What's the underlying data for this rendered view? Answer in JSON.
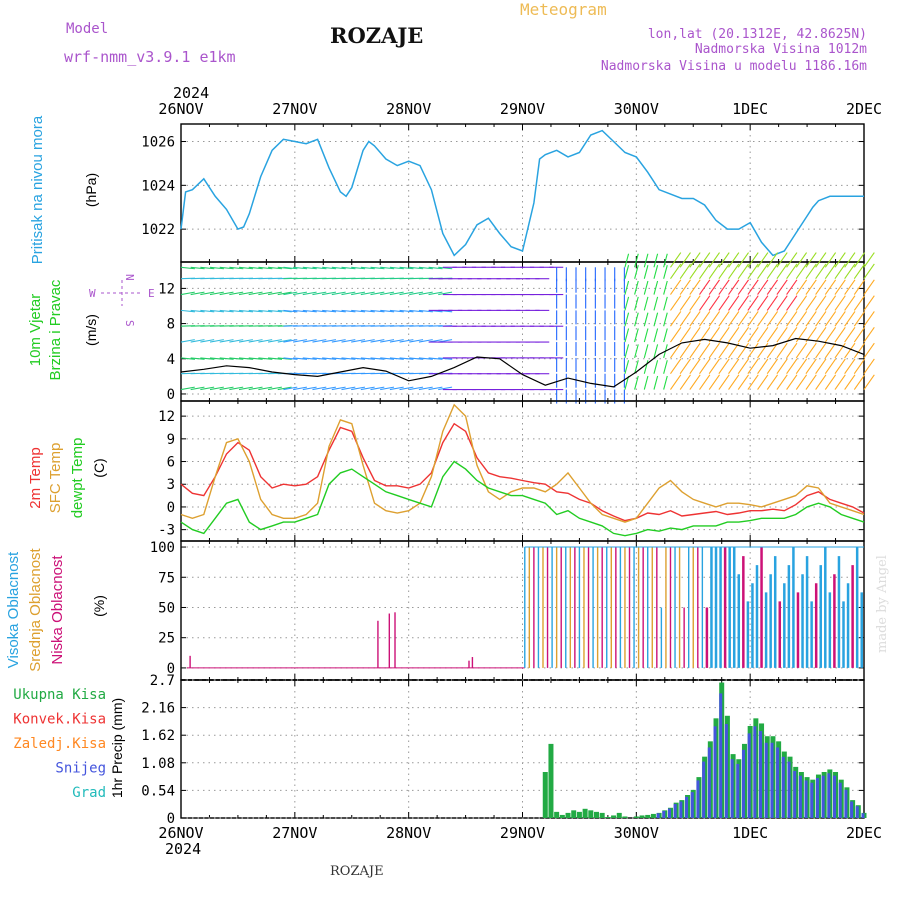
{
  "header": {
    "model_label": "Model",
    "model_name": "wrf-nmm_v3.9.1 e1km",
    "title": "ROZAJE",
    "subtitle": "Meteogram",
    "coords": "lon,lat (20.1312E, 42.8625N)",
    "elevation": "Nadmorska Visina 1012m",
    "model_elevation": "Nadmorska Visina u modelu 1186.16m",
    "footer": "ROZAJE",
    "credit": "made by Angel"
  },
  "colors": {
    "pressure": "#29a3e0",
    "temp2m": "#ee3333",
    "sfc": "#dda030",
    "dewpt": "#22cc22",
    "high_cloud": "#29a3e0",
    "mid_cloud": "#dda030",
    "low_cloud": "#cc1177",
    "precip_total": "#22aa44",
    "precip_snow": "#4455dd",
    "model_label": "#aa55cc"
  },
  "chart_data": [
    {
      "id": "time_axis",
      "type": "line",
      "year": "2024",
      "categories": [
        "26NOV",
        "27NOV",
        "28NOV",
        "29NOV",
        "30NOV",
        "1DEC",
        "2DEC"
      ]
    },
    {
      "id": "pressure",
      "type": "line",
      "ylabel": "Pritisak na nivou mora",
      "unit": "(hPa)",
      "yticks": [
        1022,
        1024,
        1026
      ],
      "ylim": [
        1020.5,
        1026.8
      ],
      "series": [
        {
          "x": [
            0,
            0.04,
            0.1,
            0.2,
            0.3,
            0.4,
            0.5,
            0.55,
            0.6,
            0.7,
            0.8,
            0.9,
            1.0,
            1.1,
            1.2,
            1.3,
            1.4,
            1.45,
            1.5,
            1.6,
            1.65,
            1.7,
            1.8,
            1.9,
            2.0,
            2.1,
            2.2,
            2.3,
            2.4,
            2.5,
            2.6,
            2.7,
            2.8,
            2.9,
            3.0,
            3.1,
            3.15,
            3.2,
            3.3,
            3.4,
            3.5,
            3.6,
            3.7,
            3.8,
            3.9,
            4.0,
            4.1,
            4.2,
            4.3,
            4.4,
            4.5,
            4.6,
            4.7,
            4.8,
            4.9,
            5.0,
            5.1,
            5.2,
            5.3,
            5.4,
            5.5,
            5.55,
            5.6,
            5.7,
            5.8,
            5.9,
            6.0
          ],
          "y": [
            1022.0,
            1023.7,
            1023.8,
            1024.3,
            1023.5,
            1022.9,
            1022.0,
            1022.1,
            1022.7,
            1024.4,
            1025.6,
            1026.1,
            1026.0,
            1025.9,
            1026.1,
            1024.8,
            1023.7,
            1023.5,
            1023.9,
            1025.6,
            1026.0,
            1025.8,
            1025.2,
            1024.9,
            1025.1,
            1024.9,
            1023.8,
            1021.8,
            1020.8,
            1021.3,
            1022.2,
            1022.5,
            1021.8,
            1021.2,
            1021.0,
            1023.2,
            1025.2,
            1025.4,
            1025.6,
            1025.3,
            1025.5,
            1026.3,
            1026.5,
            1026.0,
            1025.5,
            1025.3,
            1024.6,
            1023.8,
            1023.6,
            1023.4,
            1023.4,
            1023.1,
            1022.4,
            1022.0,
            1022.0,
            1022.3,
            1021.4,
            1020.8,
            1021.0,
            1021.8,
            1022.6,
            1023.0,
            1023.3,
            1023.5,
            1023.5,
            1023.5,
            1023.5
          ]
        }
      ]
    },
    {
      "id": "wind",
      "type": "line",
      "ylabel": "10m Vjetar",
      "ylabel2": "Brzina i Pravac",
      "unit": "(m/s)",
      "yticks": [
        0,
        4,
        8,
        12
      ],
      "ylim": [
        -0.8,
        15
      ],
      "legend": {
        "n": "N",
        "w": "W",
        "e": "E",
        "s": "S"
      },
      "series": [
        {
          "name": "speed",
          "x": [
            0,
            0.2,
            0.4,
            0.6,
            0.8,
            1.0,
            1.2,
            1.4,
            1.6,
            1.8,
            2.0,
            2.2,
            2.4,
            2.6,
            2.8,
            3.0,
            3.2,
            3.4,
            3.6,
            3.8,
            4.0,
            4.2,
            4.4,
            4.6,
            4.8,
            5.0,
            5.2,
            5.4,
            5.6,
            5.8,
            6.0
          ],
          "y": [
            2.5,
            2.8,
            3.2,
            3.0,
            2.5,
            2.2,
            2.0,
            2.5,
            3.0,
            2.6,
            1.5,
            2.0,
            3.0,
            4.2,
            4.0,
            2.2,
            1.0,
            1.8,
            1.2,
            0.8,
            2.5,
            4.5,
            5.8,
            6.2,
            5.8,
            5.2,
            5.5,
            6.3,
            6.0,
            5.5,
            4.5
          ]
        }
      ],
      "direction_bands": [
        {
          "x": [
            0.0,
            0.9
          ],
          "color": "#22cc66"
        },
        {
          "x": [
            0.9,
            2.3
          ],
          "color": "#3399ff"
        },
        {
          "x": [
            2.3,
            3.3
          ],
          "color": "#7722dd"
        },
        {
          "x": [
            3.3,
            3.9
          ],
          "color": "#2266ff"
        },
        {
          "x": [
            3.9,
            4.3
          ],
          "color": "#22dd44"
        },
        {
          "x": [
            4.3,
            6.0
          ],
          "color": "#ffaa22"
        }
      ]
    },
    {
      "id": "temperature",
      "type": "line",
      "ylabel": "2m Temp",
      "ylabel2": "SFC Temp",
      "ylabel3": "dewpt Temp",
      "unit": "(C)",
      "yticks": [
        -3,
        0,
        3,
        6,
        9,
        12
      ],
      "ylim": [
        -4.5,
        14
      ],
      "categories": [
        "26NOV",
        "27NOV",
        "28NOV",
        "29NOV",
        "30NOV",
        "1DEC",
        "2DEC"
      ],
      "series": [
        {
          "name": "2m Temp",
          "x": [
            0,
            0.1,
            0.2,
            0.3,
            0.4,
            0.5,
            0.6,
            0.7,
            0.8,
            0.9,
            1.0,
            1.1,
            1.2,
            1.3,
            1.4,
            1.5,
            1.6,
            1.7,
            1.8,
            1.9,
            2.0,
            2.1,
            2.2,
            2.3,
            2.4,
            2.5,
            2.6,
            2.7,
            2.8,
            2.9,
            3.0,
            3.1,
            3.2,
            3.3,
            3.4,
            3.5,
            3.6,
            3.7,
            3.8,
            3.9,
            4.0,
            4.1,
            4.2,
            4.3,
            4.4,
            4.5,
            4.6,
            4.7,
            4.8,
            4.9,
            5.0,
            5.1,
            5.2,
            5.3,
            5.4,
            5.5,
            5.6,
            5.7,
            5.8,
            5.9,
            6.0
          ],
          "y": [
            3.0,
            1.8,
            1.5,
            4.0,
            7.0,
            8.5,
            7.5,
            4.0,
            2.5,
            3.0,
            2.8,
            3.0,
            4.0,
            7.5,
            10.5,
            10.0,
            6.5,
            3.5,
            2.8,
            2.8,
            2.5,
            3.0,
            4.5,
            8.5,
            11.0,
            10.0,
            6.5,
            4.5,
            4.0,
            3.8,
            3.5,
            3.2,
            3.0,
            2.0,
            1.8,
            1.0,
            0.5,
            -0.5,
            -1.2,
            -1.8,
            -1.5,
            -0.8,
            -1.0,
            -0.5,
            -1.2,
            -1.0,
            -0.8,
            -0.6,
            -1.0,
            -0.8,
            -0.5,
            -0.5,
            -0.3,
            -0.5,
            0.3,
            1.5,
            2.0,
            1.0,
            0.5,
            0.0,
            -0.8
          ]
        },
        {
          "name": "SFC Temp",
          "x": [
            0,
            0.1,
            0.2,
            0.3,
            0.4,
            0.5,
            0.6,
            0.7,
            0.8,
            0.9,
            1.0,
            1.1,
            1.2,
            1.3,
            1.4,
            1.5,
            1.6,
            1.7,
            1.8,
            1.9,
            2.0,
            2.1,
            2.2,
            2.3,
            2.4,
            2.5,
            2.6,
            2.7,
            2.8,
            2.9,
            3.0,
            3.1,
            3.2,
            3.3,
            3.4,
            3.5,
            3.6,
            3.7,
            3.8,
            3.9,
            4.0,
            4.1,
            4.2,
            4.3,
            4.4,
            4.5,
            4.6,
            4.7,
            4.8,
            4.9,
            5.0,
            5.1,
            5.2,
            5.3,
            5.4,
            5.5,
            5.6,
            5.7,
            5.8,
            5.9,
            6.0
          ],
          "y": [
            -1.0,
            -1.5,
            -1.0,
            4.0,
            8.5,
            9.0,
            6.0,
            1.0,
            -1.0,
            -1.5,
            -1.5,
            -1.0,
            0.5,
            8.0,
            11.5,
            11.0,
            5.5,
            0.5,
            -0.5,
            -0.8,
            -0.5,
            0.5,
            4.0,
            10.0,
            13.5,
            12.0,
            5.5,
            2.0,
            1.0,
            2.0,
            2.5,
            2.5,
            2.0,
            3.0,
            4.5,
            2.5,
            0.5,
            -1.0,
            -1.5,
            -2.0,
            -1.5,
            0.5,
            2.5,
            3.5,
            2.0,
            1.0,
            0.5,
            0.0,
            0.5,
            0.5,
            0.3,
            0.0,
            0.5,
            1.0,
            1.5,
            2.8,
            2.5,
            0.5,
            0.0,
            -0.5,
            -1.0
          ]
        },
        {
          "name": "dewpt Temp",
          "x": [
            0,
            0.1,
            0.2,
            0.3,
            0.4,
            0.5,
            0.6,
            0.7,
            0.8,
            0.9,
            1.0,
            1.1,
            1.2,
            1.3,
            1.4,
            1.5,
            1.6,
            1.7,
            1.8,
            1.9,
            2.0,
            2.1,
            2.2,
            2.3,
            2.4,
            2.5,
            2.6,
            2.7,
            2.8,
            2.9,
            3.0,
            3.1,
            3.2,
            3.3,
            3.4,
            3.5,
            3.6,
            3.7,
            3.8,
            3.9,
            4.0,
            4.1,
            4.2,
            4.3,
            4.4,
            4.5,
            4.6,
            4.7,
            4.8,
            4.9,
            5.0,
            5.1,
            5.2,
            5.3,
            5.4,
            5.5,
            5.6,
            5.7,
            5.8,
            5.9,
            6.0
          ],
          "y": [
            -2.0,
            -3.0,
            -3.5,
            -1.5,
            0.5,
            1.0,
            -2.0,
            -3.0,
            -2.5,
            -2.0,
            -2.0,
            -1.5,
            -1.0,
            3.0,
            4.5,
            5.0,
            4.0,
            3.0,
            2.0,
            1.5,
            1.0,
            0.5,
            0.0,
            4.0,
            6.0,
            5.0,
            3.5,
            2.5,
            2.0,
            1.5,
            1.5,
            1.0,
            0.5,
            -1.0,
            -0.5,
            -1.5,
            -2.0,
            -2.5,
            -3.5,
            -3.8,
            -3.5,
            -3.0,
            -3.2,
            -2.8,
            -3.0,
            -2.5,
            -2.5,
            -2.5,
            -2.0,
            -2.0,
            -1.8,
            -1.5,
            -1.5,
            -1.5,
            -1.0,
            0.0,
            0.5,
            0.0,
            -1.0,
            -1.5,
            -2.0
          ]
        }
      ]
    },
    {
      "id": "cloud",
      "type": "bar",
      "ylabel": "Visoka Oblacnost",
      "ylabel2": "Srednja Oblacnost",
      "ylabel3": "Niska Oblacnost",
      "unit": "(%)",
      "yticks": [
        0,
        25,
        50,
        75,
        100
      ],
      "ylim": [
        0,
        100
      ],
      "series": [
        {
          "name": "low_spikes",
          "x": [
            0.08,
            1.73,
            1.83,
            1.88,
            2.53,
            2.56
          ],
          "y": [
            10,
            39,
            45,
            46,
            6,
            9
          ]
        },
        {
          "name": "overcast_start",
          "x": [
            3.02
          ],
          "y": [
            100
          ]
        }
      ]
    },
    {
      "id": "precip",
      "type": "bar",
      "ylabel": "1hr Precip",
      "unit": "(mm)",
      "yticks": [
        0,
        0.54,
        1.08,
        1.62,
        2.16,
        2.7
      ],
      "ylim": [
        0,
        2.7
      ],
      "legend": [
        "Ukupna Kisa",
        "Konvek.Kisa",
        "Zaledj.Kisa",
        "Snijeg",
        "Grad"
      ],
      "legend_colors": [
        "#22aa44",
        "#ee3333",
        "#ff8822",
        "#4455dd",
        "#22bbbb"
      ],
      "series": [
        {
          "name": "total",
          "x": [
            3.2,
            3.25,
            3.3,
            3.35,
            3.4,
            3.45,
            3.5,
            3.55,
            3.6,
            3.65,
            3.7,
            3.75,
            3.8,
            3.85,
            3.9,
            4.0,
            4.05,
            4.1,
            4.15,
            4.2,
            4.25,
            4.3,
            4.35,
            4.4,
            4.45,
            4.5,
            4.55,
            4.6,
            4.65,
            4.7,
            4.75,
            4.8,
            4.85,
            4.9,
            4.95,
            5.0,
            5.05,
            5.1,
            5.15,
            5.2,
            5.25,
            5.3,
            5.35,
            5.4,
            5.45,
            5.5,
            5.55,
            5.6,
            5.65,
            5.7,
            5.75,
            5.8,
            5.85,
            5.9,
            5.95,
            6.0
          ],
          "y": [
            0.9,
            1.45,
            0.12,
            0.06,
            0.1,
            0.15,
            0.12,
            0.18,
            0.15,
            0.12,
            0.1,
            0.02,
            0.05,
            0.1,
            0.03,
            0.03,
            0.05,
            0.06,
            0.08,
            0.1,
            0.15,
            0.2,
            0.3,
            0.35,
            0.45,
            0.55,
            0.8,
            1.2,
            1.5,
            1.95,
            2.65,
            2.0,
            1.25,
            1.15,
            1.45,
            1.8,
            1.95,
            1.85,
            1.6,
            1.6,
            1.5,
            1.3,
            1.2,
            1.0,
            0.9,
            0.8,
            0.75,
            0.85,
            0.9,
            0.95,
            0.9,
            0.75,
            0.6,
            0.35,
            0.25,
            0.1
          ]
        }
      ]
    }
  ]
}
